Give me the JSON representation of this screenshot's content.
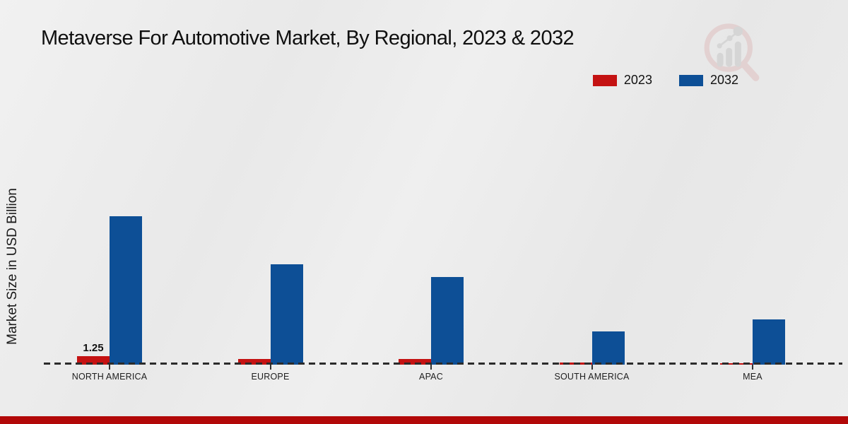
{
  "title": "Metaverse For Automotive Market, By Regional, 2023 & 2032",
  "y_axis_label": "Market Size in USD Billion",
  "legend": {
    "position": "top-right",
    "items": [
      {
        "label": "2023",
        "color": "#c41212"
      },
      {
        "label": "2032",
        "color": "#0d4f96"
      }
    ]
  },
  "colors": {
    "bar_2023": "#c41212",
    "bar_2032": "#0d4f96",
    "baseline_dash": "#2b2b2b",
    "bottom_strip": "#b20808",
    "background": "#ebebeb",
    "title_text": "#0f0f0f",
    "logo_ring": "#dfc0c0",
    "logo_bars": "#c8c8c8"
  },
  "icons": {
    "brand_logo": "magnifier-bar-chart-watermark"
  },
  "chart_data": {
    "type": "bar",
    "categories": [
      "NORTH AMERICA",
      "EUROPE",
      "APAC",
      "SOUTH AMERICA",
      "MEA"
    ],
    "series": [
      {
        "name": "2023",
        "color": "#c41212",
        "values": [
          1.25,
          0.85,
          0.8,
          0.3,
          0.25
        ]
      },
      {
        "name": "2032",
        "color": "#0d4f96",
        "values": [
          21.0,
          14.2,
          12.4,
          4.7,
          6.4
        ]
      }
    ],
    "title": "Metaverse For Automotive Market, By Regional, 2023 & 2032",
    "xlabel": "",
    "ylabel": "Market Size in USD Billion",
    "ylim": [
      0,
      24
    ],
    "grid": false,
    "y_axis_ticks_visible": false,
    "baseline_style": "dashed",
    "legend_position": "top-right",
    "annotations": [
      {
        "category_index": 0,
        "series": "2023",
        "text": "1.25"
      }
    ]
  }
}
